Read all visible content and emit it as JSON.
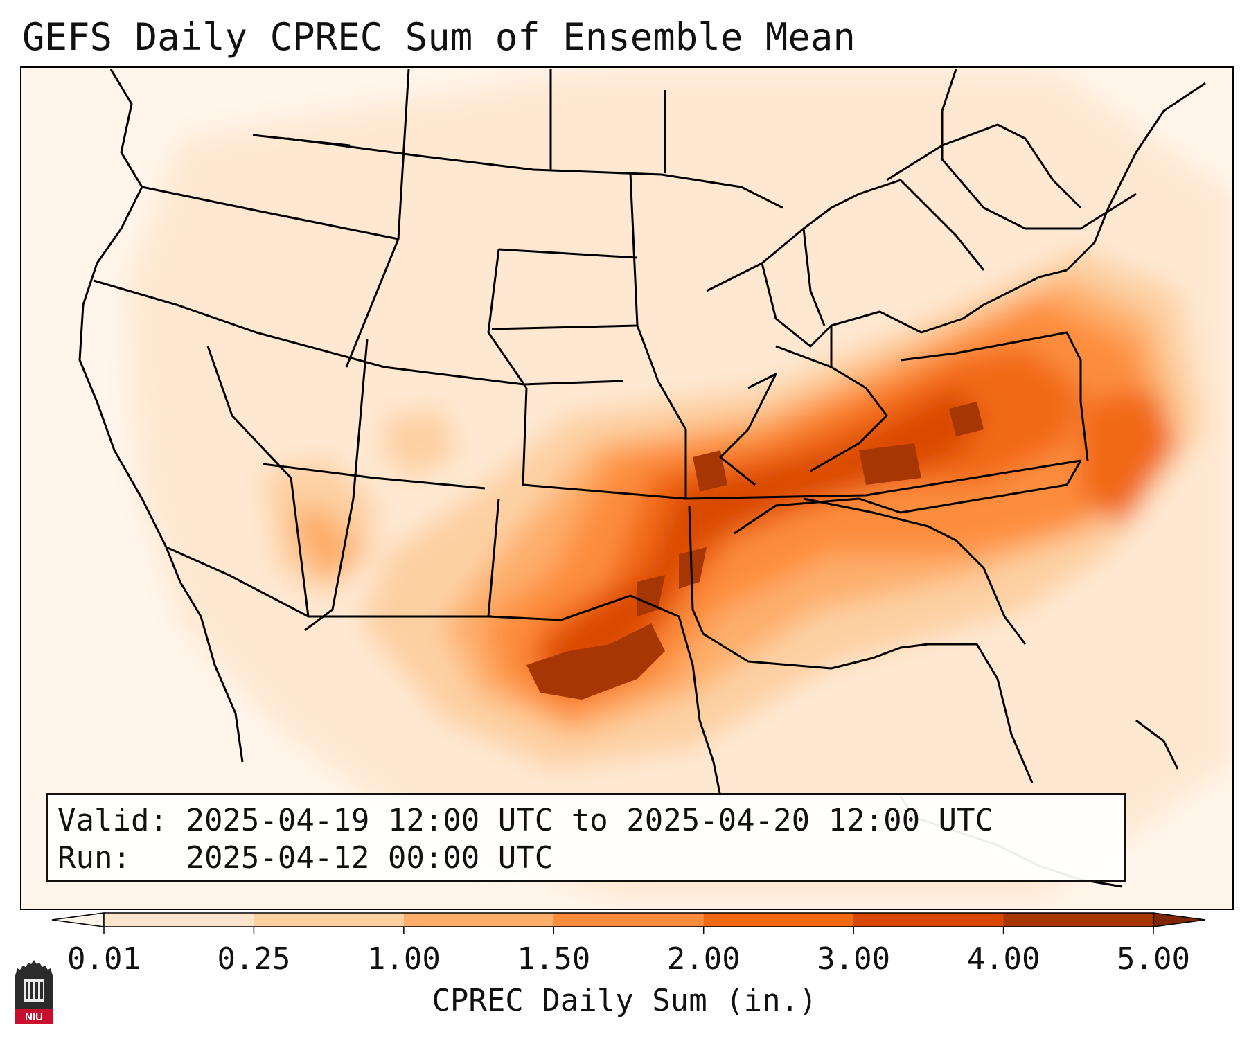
{
  "title": "GEFS Daily CPREC Sum of Ensemble Mean",
  "info": {
    "valid_label": "Valid:",
    "valid_value": "2025-04-19 12:00 UTC to 2025-04-20 12:00 UTC",
    "run_label": "Run:",
    "run_value": "2025-04-12 00:00 UTC"
  },
  "colorbar": {
    "title": "CPREC Daily Sum (in.)",
    "ticks": [
      "0.01",
      "0.25",
      "1.00",
      "1.50",
      "2.00",
      "3.00",
      "4.00",
      "5.00"
    ],
    "colors": [
      "#fff5eb",
      "#fee6ce",
      "#fdd0a2",
      "#fdae6b",
      "#fd8d3c",
      "#f16913",
      "#d94801",
      "#a63603",
      "#7f2704"
    ]
  },
  "logo": {
    "text": "NIU",
    "colors": {
      "tower": "#2b2b2b",
      "band": "#c8102e"
    }
  }
}
